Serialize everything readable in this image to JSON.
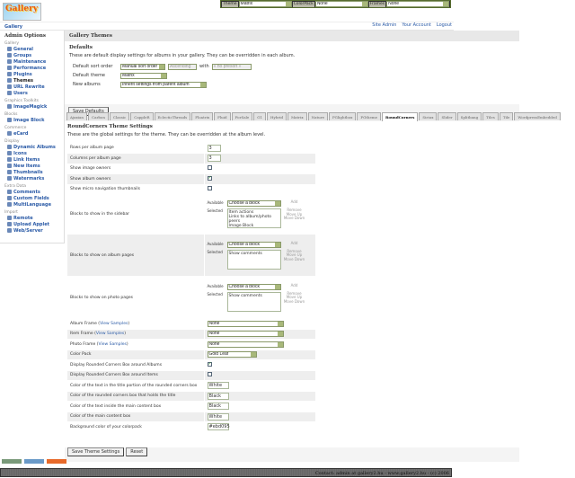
{
  "topbar": {
    "theme_label": "Theme",
    "theme_value": "Matrix",
    "colorpack_label": "ColorPack",
    "colorpack_value": "None",
    "frames_label": "Frames",
    "frames_value": "None"
  },
  "logo": "Gallery",
  "breadcrumb": "Gallery",
  "toplinks": [
    "Site Admin",
    "Your Account",
    "Logout"
  ],
  "sidebar": {
    "title": "Admin Options",
    "groups": [
      {
        "label": "Gallery",
        "items": [
          "General",
          "Groups",
          "Maintenance",
          "Performance",
          "Plugins",
          "Themes",
          "URL Rewrite",
          "Users"
        ]
      },
      {
        "label": "Graphics Toolkits",
        "items": [
          "ImageMagick"
        ]
      },
      {
        "label": "Blocks",
        "items": [
          "Image Block"
        ]
      },
      {
        "label": "Commerce",
        "items": [
          "eCard"
        ]
      },
      {
        "label": "Display",
        "items": [
          "Dynamic Albums",
          "Icons",
          "Link Items",
          "New Items",
          "Thumbnails",
          "Watermarks"
        ]
      },
      {
        "label": "Extra Data",
        "items": [
          "Comments",
          "Custom Fields",
          "MultiLanguage"
        ]
      },
      {
        "label": "Import",
        "items": [
          "Remote",
          "Upload Applet",
          "Web/Server"
        ]
      }
    ],
    "current": "Themes"
  },
  "main": {
    "title": "Gallery Themes",
    "defaults": {
      "heading": "Defaults",
      "desc": "These are default display settings for albums in your gallery. They can be overridden in each album.",
      "sort_label": "Default sort order",
      "sort_value": "Manual sort order",
      "direction_value": "Ascending",
      "with_label": "with",
      "presort_value": "« no presort »",
      "theme_label": "Default theme",
      "theme_value": "Matrix",
      "new_label": "New albums",
      "new_value": "Inherit settings from parent album",
      "save": "Save Defaults"
    },
    "tabs": [
      "Ajaxian",
      "Carbon",
      "Classic",
      "CappleR",
      "EclecticThreads",
      "Floatrix",
      "Fluid",
      "ForSale",
      "G1",
      "Hybrid",
      "Matrix",
      "Nature",
      "PGlightbox",
      "PGtheme",
      "RoundCorners",
      "Siriux",
      "Slider",
      "Splitbang",
      "Tiles",
      "Tile",
      "WordpressEmbedded"
    ],
    "active_tab": "RoundCorners",
    "settings": {
      "heading": "RoundCorners Theme Settings",
      "desc": "These are the global settings for the theme. They can be overridden at the album level.",
      "rows_label": "Rows per album page",
      "rows_value": "3",
      "cols_label": "Columns per album page",
      "cols_value": "3",
      "image_owners_label": "Show image owners",
      "image_owners": false,
      "album_owners_label": "Show album owners",
      "album_owners": true,
      "micro_label": "Show micro navigation thumbnails",
      "micro": false,
      "blocks": [
        {
          "label": "Blocks to show in the sidebar",
          "selected": "Item actions\nLinks to album/photo peers\nImage Block"
        },
        {
          "label": "Blocks to show on album pages",
          "selected": "Show comments"
        },
        {
          "label": "Blocks to show on photo pages",
          "selected": "Show comments"
        }
      ],
      "block_labels": {
        "available": "Available",
        "selected": "Selected",
        "choose": "Choose a block",
        "add": "Add",
        "remove": "Remove",
        "up": "Move Up",
        "down": "Move Down"
      },
      "album_frame": "Album Frame",
      "item_frame": "Item Frame",
      "photo_frame": "Photo Frame",
      "view_samples": "View Samples",
      "frame_value": "None",
      "colorpack_label": "Color Pack",
      "colorpack_value": "Gold Leaf",
      "rc_albums_label": "Display Rounded Corners Box around Albums",
      "rc_albums": true,
      "rc_items_label": "Display Rounded Corners Box around Items",
      "rc_items": false,
      "colors": [
        {
          "label": "Color of the text in the title portion of the rounded corners box",
          "value": "White"
        },
        {
          "label": "Color of the rounded corners box that holds the title",
          "value": "Black"
        },
        {
          "label": "Color of the text inside the main content box",
          "value": "Black"
        },
        {
          "label": "Color of the main content box",
          "value": "White"
        },
        {
          "label": "Background color of your colorpack",
          "value": "#ebd095"
        }
      ],
      "save": "Save Theme Settings",
      "reset": "Reset"
    }
  },
  "footer": "Contact: admin at gallery2.hu - www.gallery2.hu - (c) 2006"
}
